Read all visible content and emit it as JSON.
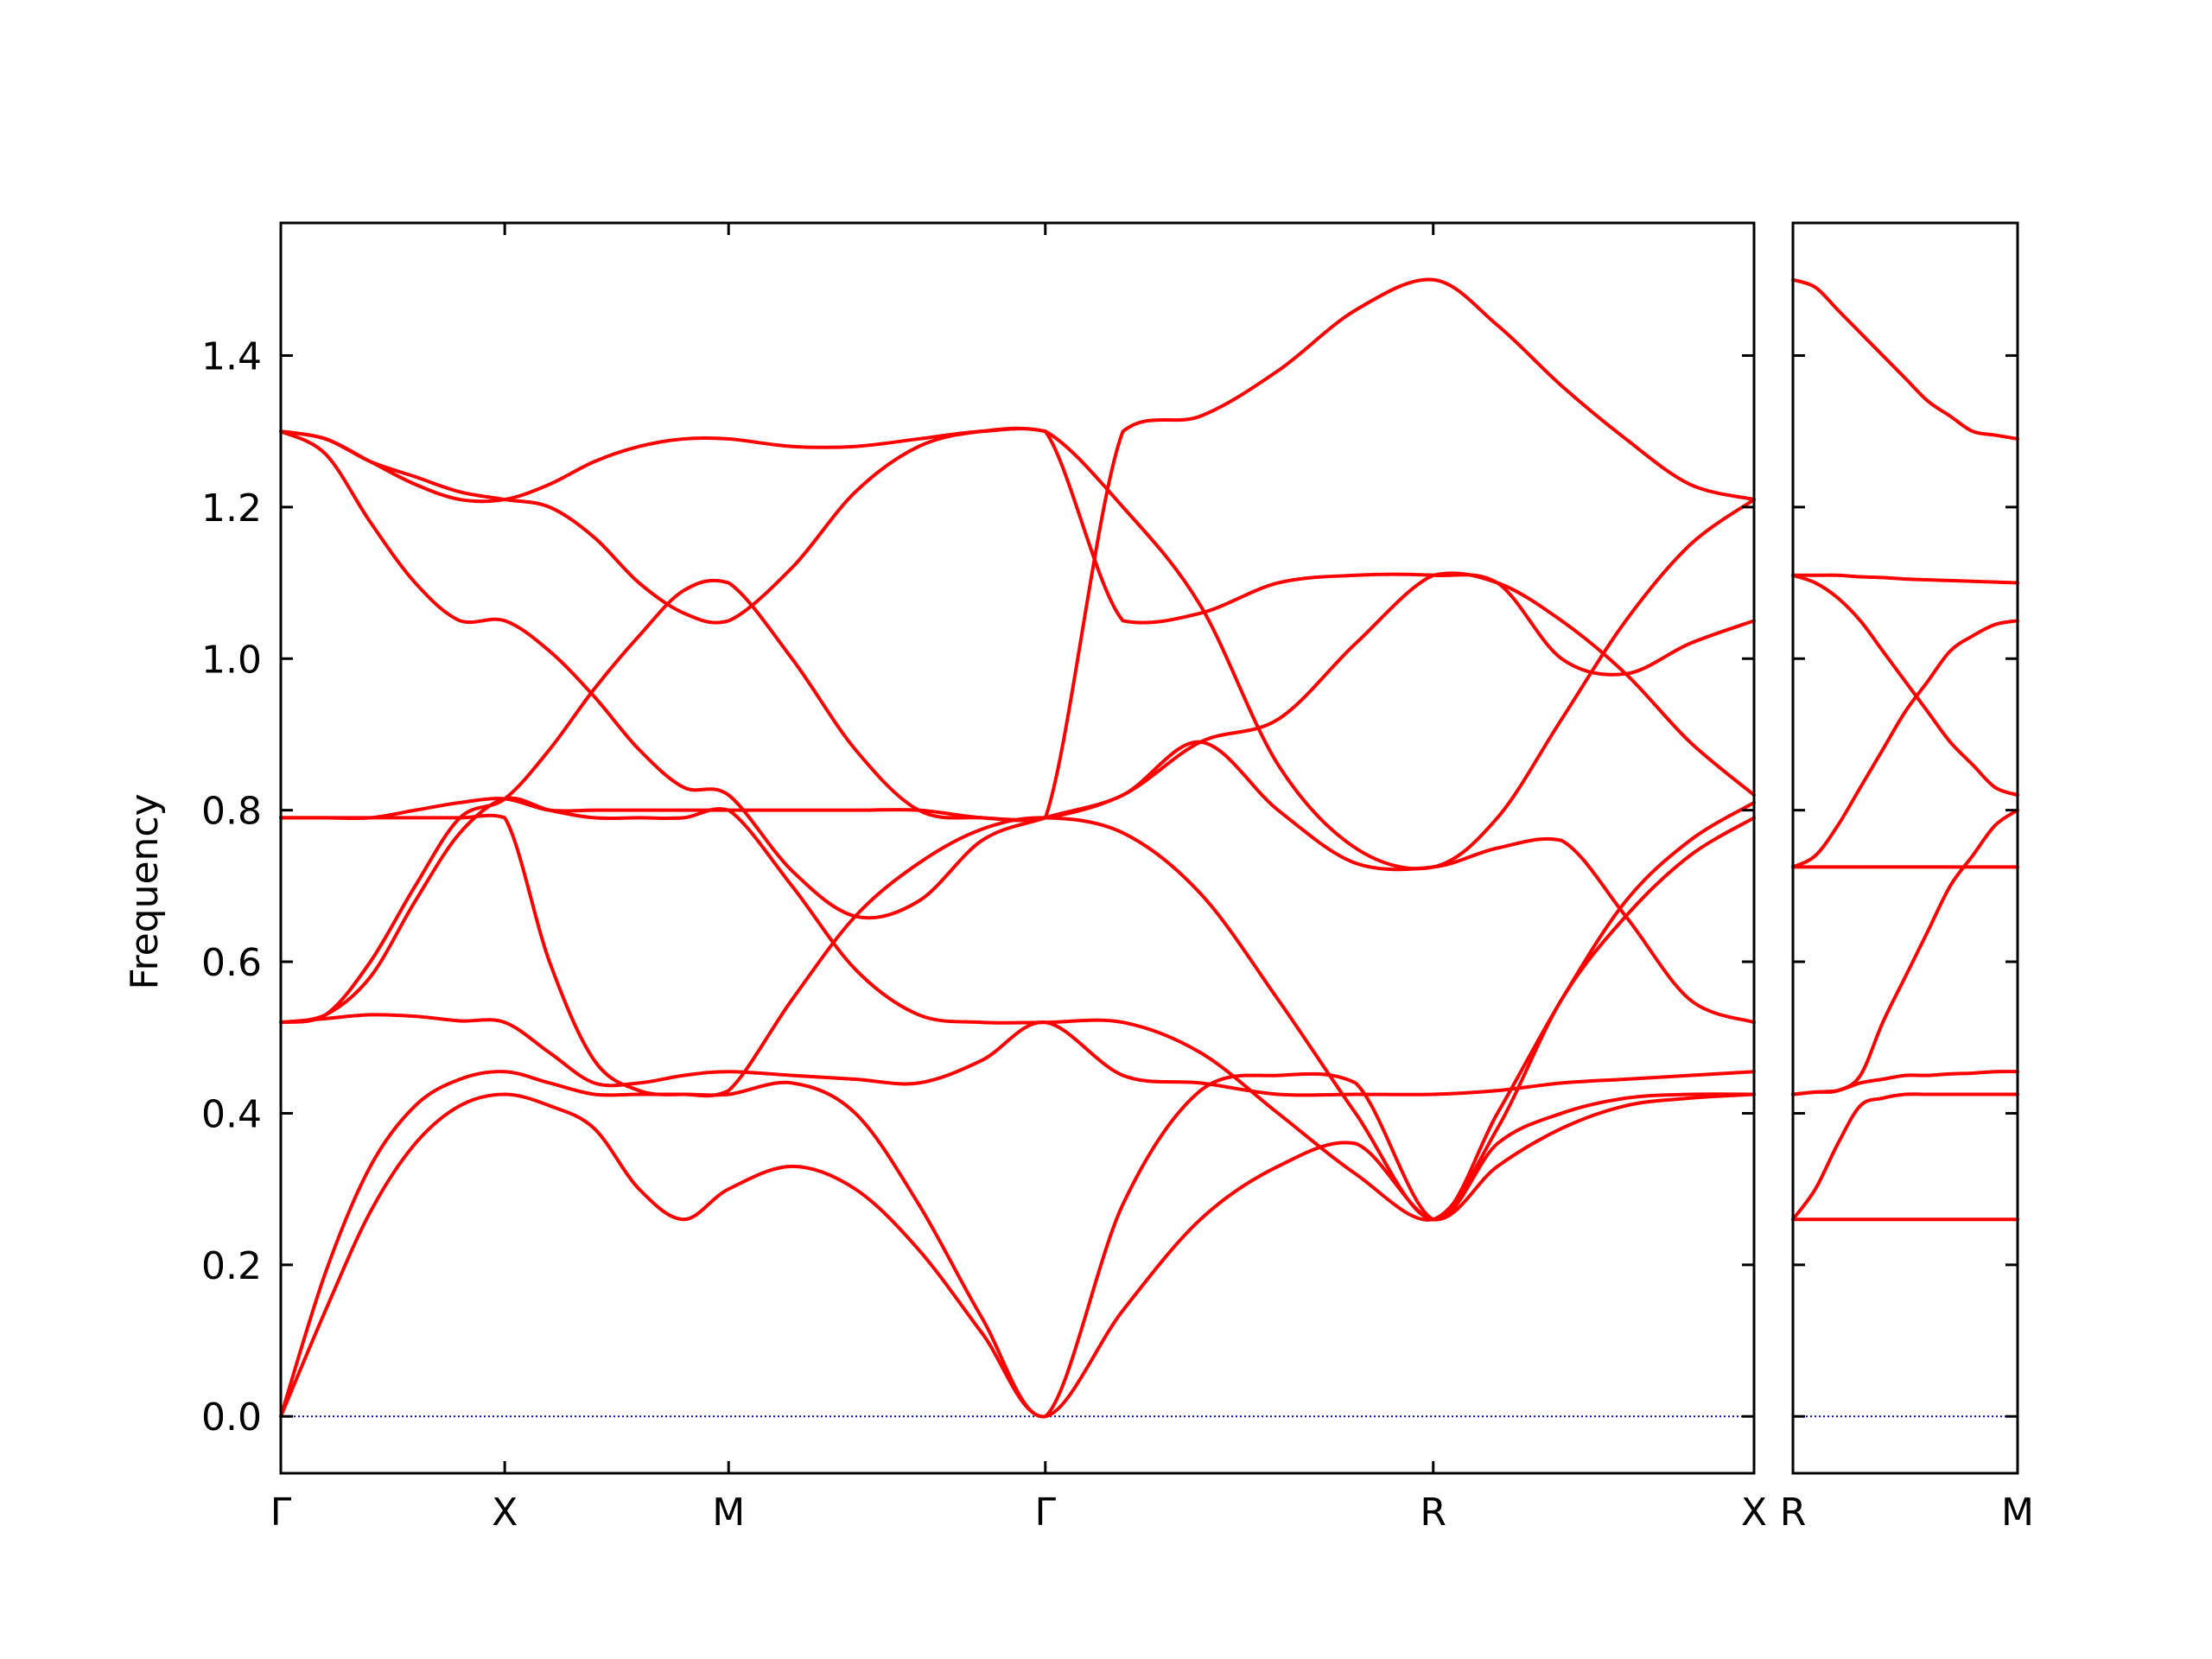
{
  "chart_data": {
    "type": "line",
    "ylabel": "Frequency",
    "ylim": [
      -0.075,
      1.575
    ],
    "yticks": [
      0.0,
      0.2,
      0.4,
      0.6,
      0.8,
      1.0,
      1.2,
      1.4
    ],
    "ytick_labels": [
      "0.0",
      "0.2",
      "0.4",
      "0.6",
      "0.8",
      "1.0",
      "1.2",
      "1.4"
    ],
    "line_color": "#ff0000",
    "zero_line_color": "#0000cc",
    "panels": [
      {
        "xlim": [
          0,
          1.9494
        ],
        "xticks": [
          0,
          0.2963,
          0.5925,
          1.0116,
          1.5249,
          1.9494
        ],
        "xtick_labels": [
          "Γ",
          "X",
          "M",
          "Γ",
          "R",
          "X"
        ],
        "bands": [
          {
            "x": [
              0,
              0.0592,
              0.1185,
              0.1778,
              0.237,
              0.2963,
              0.3555,
              0.4147,
              0.474,
              0.5333,
              0.5925,
              0.6764,
              0.7602,
              0.844,
              0.9278,
              1.0116,
              1.1143,
              1.2169,
              1.3196,
              1.4222,
              1.5249,
              1.6098,
              1.6947,
              1.7796,
              1.8645,
              1.9494
            ],
            "y": [
              0.0,
              0.14,
              0.27,
              0.36,
              0.41,
              0.425,
              0.41,
              0.38,
              0.3,
              0.26,
              0.3,
              0.33,
              0.3,
              0.22,
              0.11,
              0.0,
              0.14,
              0.26,
              0.33,
              0.36,
              0.26,
              0.33,
              0.38,
              0.41,
              0.42,
              0.425
            ]
          },
          {
            "x": [
              0,
              0.0592,
              0.1185,
              0.1778,
              0.237,
              0.2963,
              0.3555,
              0.4147,
              0.474,
              0.5333,
              0.5925,
              0.6764,
              0.7602,
              0.844,
              0.9278,
              1.0116,
              1.1143,
              1.2169,
              1.3196,
              1.4222,
              1.5249,
              1.6098,
              1.6947,
              1.7796,
              1.8645,
              1.9494
            ],
            "y": [
              0.0,
              0.19,
              0.33,
              0.41,
              0.445,
              0.455,
              0.44,
              0.425,
              0.425,
              0.425,
              0.425,
              0.44,
              0.4,
              0.28,
              0.13,
              0.0,
              0.28,
              0.43,
              0.45,
              0.44,
              0.26,
              0.36,
              0.4,
              0.42,
              0.425,
              0.425
            ]
          },
          {
            "x": [
              0,
              0.0592,
              0.1185,
              0.1778,
              0.237,
              0.2963,
              0.3555,
              0.4147,
              0.474,
              0.5333,
              0.5925,
              0.6764,
              0.7602,
              0.844,
              0.9278,
              1.0116,
              1.1143,
              1.2169,
              1.3196,
              1.4222,
              1.5249,
              1.6098,
              1.6947,
              1.7796,
              1.8645,
              1.9494
            ],
            "y": [
              0.52,
              0.525,
              0.53,
              0.528,
              0.522,
              0.52,
              0.48,
              0.44,
              0.44,
              0.45,
              0.455,
              0.45,
              0.445,
              0.44,
              0.47,
              0.52,
              0.45,
              0.44,
              0.425,
              0.425,
              0.425,
              0.43,
              0.44,
              0.445,
              0.45,
              0.455
            ]
          },
          {
            "x": [
              0,
              0.0592,
              0.1185,
              0.1778,
              0.237,
              0.2963,
              0.3555,
              0.4147,
              0.474,
              0.5333,
              0.5925,
              0.6764,
              0.7602,
              0.844,
              0.9278,
              1.0116,
              1.1143,
              1.2169,
              1.3196,
              1.4222,
              1.5249,
              1.6098,
              1.6947,
              1.7796,
              1.8645,
              1.9494
            ],
            "y": [
              0.52,
              0.53,
              0.58,
              0.68,
              0.77,
              0.815,
              0.8,
              0.79,
              0.79,
              0.79,
              0.8,
              0.7,
              0.59,
              0.53,
              0.52,
              0.52,
              0.52,
              0.48,
              0.4,
              0.32,
              0.26,
              0.38,
              0.55,
              0.66,
              0.74,
              0.79
            ]
          },
          {
            "x": [
              0,
              0.0592,
              0.1185,
              0.1778,
              0.237,
              0.2963,
              0.3555,
              0.4147,
              0.474,
              0.5333,
              0.5925,
              0.6764,
              0.7602,
              0.844,
              0.9278,
              1.0116,
              1.1143,
              1.2169,
              1.3196,
              1.4222,
              1.5249,
              1.6098,
              1.6947,
              1.7796,
              1.8645,
              1.9494
            ],
            "y": [
              0.79,
              0.79,
              0.79,
              0.79,
              0.79,
              0.79,
              0.6,
              0.47,
              0.43,
              0.425,
              0.43,
              0.55,
              0.66,
              0.73,
              0.775,
              0.79,
              0.77,
              0.69,
              0.55,
              0.4,
              0.26,
              0.4,
              0.55,
              0.68,
              0.76,
              0.81
            ]
          },
          {
            "x": [
              0,
              0.0592,
              0.1185,
              0.1778,
              0.237,
              0.2963,
              0.3555,
              0.4147,
              0.474,
              0.5333,
              0.5925,
              0.6764,
              0.7602,
              0.844,
              0.9278,
              1.0116,
              1.1143,
              1.2169,
              1.3196,
              1.4222,
              1.5249,
              1.6098,
              1.6947,
              1.7796,
              1.8645,
              1.9494
            ],
            "y": [
              0.79,
              0.79,
              0.79,
              0.8,
              0.81,
              0.815,
              0.8,
              0.8,
              0.8,
              0.8,
              0.8,
              0.8,
              0.8,
              0.8,
              0.79,
              0.79,
              0.82,
              0.89,
              0.8,
              0.73,
              0.725,
              0.75,
              0.76,
              0.66,
              0.55,
              0.52
            ]
          },
          {
            "x": [
              0,
              0.0592,
              0.1185,
              0.1778,
              0.237,
              0.2963,
              0.3555,
              0.4147,
              0.474,
              0.5333,
              0.5925,
              0.6764,
              0.7602,
              0.844,
              0.9278,
              1.0116,
              1.1143,
              1.2169,
              1.3196,
              1.4222,
              1.5249,
              1.6098,
              1.6947,
              1.7796,
              1.8645,
              1.9494
            ],
            "y": [
              1.3,
              1.27,
              1.18,
              1.1,
              1.05,
              1.05,
              1.01,
              0.95,
              0.88,
              0.83,
              0.82,
              0.72,
              0.66,
              0.68,
              0.76,
              0.79,
              0.82,
              0.89,
              0.92,
              1.02,
              1.11,
              1.1,
              1.05,
              0.98,
              0.89,
              0.82
            ]
          },
          {
            "x": [
              0,
              0.0592,
              0.1185,
              0.1778,
              0.237,
              0.2963,
              0.3555,
              0.4147,
              0.474,
              0.5333,
              0.5925,
              0.6764,
              0.7602,
              0.844,
              0.9278,
              1.0116,
              1.1143,
              1.2169,
              1.3196,
              1.4222,
              1.5249,
              1.6098,
              1.6947,
              1.7796,
              1.8645,
              1.9494
            ],
            "y": [
              1.3,
              1.29,
              1.26,
              1.24,
              1.22,
              1.21,
              1.2,
              1.16,
              1.1,
              1.06,
              1.05,
              1.12,
              1.22,
              1.28,
              1.3,
              1.3,
              1.2,
              1.07,
              0.86,
              0.75,
              0.725,
              0.79,
              0.92,
              1.05,
              1.15,
              1.21
            ]
          },
          {
            "x": [
              0,
              0.0592,
              0.1185,
              0.1778,
              0.237,
              0.2963,
              0.3555,
              0.4147,
              0.474,
              0.5333,
              0.5925,
              0.6764,
              0.7602,
              0.844,
              0.9278,
              1.0116,
              1.1143,
              1.2169,
              1.3196,
              1.4222,
              1.5249,
              1.6098,
              1.6947,
              1.7796,
              1.8645,
              1.9494
            ],
            "y": [
              1.3,
              1.29,
              1.26,
              1.23,
              1.21,
              1.21,
              1.23,
              1.26,
              1.28,
              1.29,
              1.29,
              1.28,
              1.28,
              1.29,
              1.3,
              1.3,
              1.05,
              1.06,
              1.1,
              1.11,
              1.11,
              1.1,
              1.0,
              0.98,
              1.02,
              1.05
            ]
          },
          {
            "x": [
              0,
              0.0592,
              0.1185,
              0.1778,
              0.237,
              0.2963,
              0.3555,
              0.4147,
              0.474,
              0.5333,
              0.5925,
              0.6764,
              0.7602,
              0.844,
              0.9278,
              1.0116,
              1.1143,
              1.2169,
              1.3196,
              1.4222,
              1.5249,
              1.6098,
              1.6947,
              1.7796,
              1.8645,
              1.9494
            ],
            "y": [
              0.52,
              0.53,
              0.6,
              0.7,
              0.79,
              0.815,
              0.88,
              0.96,
              1.03,
              1.09,
              1.1,
              1.0,
              0.88,
              0.8,
              0.79,
              0.79,
              1.3,
              1.32,
              1.38,
              1.46,
              1.5,
              1.44,
              1.36,
              1.29,
              1.23,
              1.21
            ]
          }
        ]
      },
      {
        "xlim": [
          0,
          0.2963
        ],
        "xticks": [
          0,
          0.2963
        ],
        "xtick_labels": [
          "R",
          "M"
        ],
        "bands": [
          {
            "x": [
              0,
              0.0296,
              0.0593,
              0.0889,
              0.1185,
              0.1481,
              0.1778,
              0.2074,
              0.237,
              0.2667,
              0.2963
            ],
            "y": [
              0.26,
              0.26,
              0.26,
              0.26,
              0.26,
              0.26,
              0.26,
              0.26,
              0.26,
              0.26,
              0.26
            ]
          },
          {
            "x": [
              0,
              0.0296,
              0.0593,
              0.0889,
              0.1185,
              0.1481,
              0.1778,
              0.2074,
              0.237,
              0.2667,
              0.2963
            ],
            "y": [
              0.26,
              0.3,
              0.36,
              0.41,
              0.42,
              0.425,
              0.425,
              0.425,
              0.425,
              0.425,
              0.425
            ]
          },
          {
            "x": [
              0,
              0.0296,
              0.0593,
              0.0889,
              0.1185,
              0.1481,
              0.1778,
              0.2074,
              0.237,
              0.2667,
              0.2963
            ],
            "y": [
              0.425,
              0.428,
              0.43,
              0.44,
              0.445,
              0.45,
              0.45,
              0.452,
              0.453,
              0.455,
              0.455
            ]
          },
          {
            "x": [
              0,
              0.0296,
              0.0593,
              0.0889,
              0.1185,
              0.1481,
              0.1778,
              0.2074,
              0.237,
              0.2667,
              0.2963
            ],
            "y": [
              0.425,
              0.428,
              0.43,
              0.45,
              0.52,
              0.58,
              0.64,
              0.7,
              0.74,
              0.78,
              0.8
            ]
          },
          {
            "x": [
              0,
              0.0296,
              0.0593,
              0.0889,
              0.1185,
              0.1481,
              0.1778,
              0.2074,
              0.237,
              0.2667,
              0.2963
            ],
            "y": [
              0.725,
              0.725,
              0.725,
              0.725,
              0.725,
              0.725,
              0.725,
              0.725,
              0.725,
              0.725,
              0.725
            ]
          },
          {
            "x": [
              0,
              0.0296,
              0.0593,
              0.0889,
              0.1185,
              0.1481,
              0.1778,
              0.2074,
              0.237,
              0.2667,
              0.2963
            ],
            "y": [
              0.725,
              0.74,
              0.78,
              0.83,
              0.88,
              0.93,
              0.97,
              1.01,
              1.03,
              1.045,
              1.05
            ]
          },
          {
            "x": [
              0,
              0.0296,
              0.0593,
              0.0889,
              0.1185,
              0.1481,
              0.1778,
              0.2074,
              0.237,
              0.2667,
              0.2963
            ],
            "y": [
              1.11,
              1.1,
              1.08,
              1.05,
              1.01,
              0.97,
              0.93,
              0.89,
              0.86,
              0.83,
              0.82
            ]
          },
          {
            "x": [
              0,
              0.0296,
              0.0593,
              0.0889,
              0.1185,
              0.1481,
              0.1778,
              0.2074,
              0.237,
              0.2667,
              0.2963
            ],
            "y": [
              1.11,
              1.11,
              1.11,
              1.108,
              1.107,
              1.105,
              1.104,
              1.103,
              1.102,
              1.101,
              1.1
            ]
          },
          {
            "x": [
              0,
              0.0296,
              0.0593,
              0.0889,
              0.1185,
              0.1481,
              0.1778,
              0.2074,
              0.237,
              0.2667,
              0.2963
            ],
            "y": [
              1.5,
              1.49,
              1.46,
              1.43,
              1.4,
              1.37,
              1.34,
              1.32,
              1.3,
              1.295,
              1.29
            ]
          }
        ]
      }
    ]
  }
}
